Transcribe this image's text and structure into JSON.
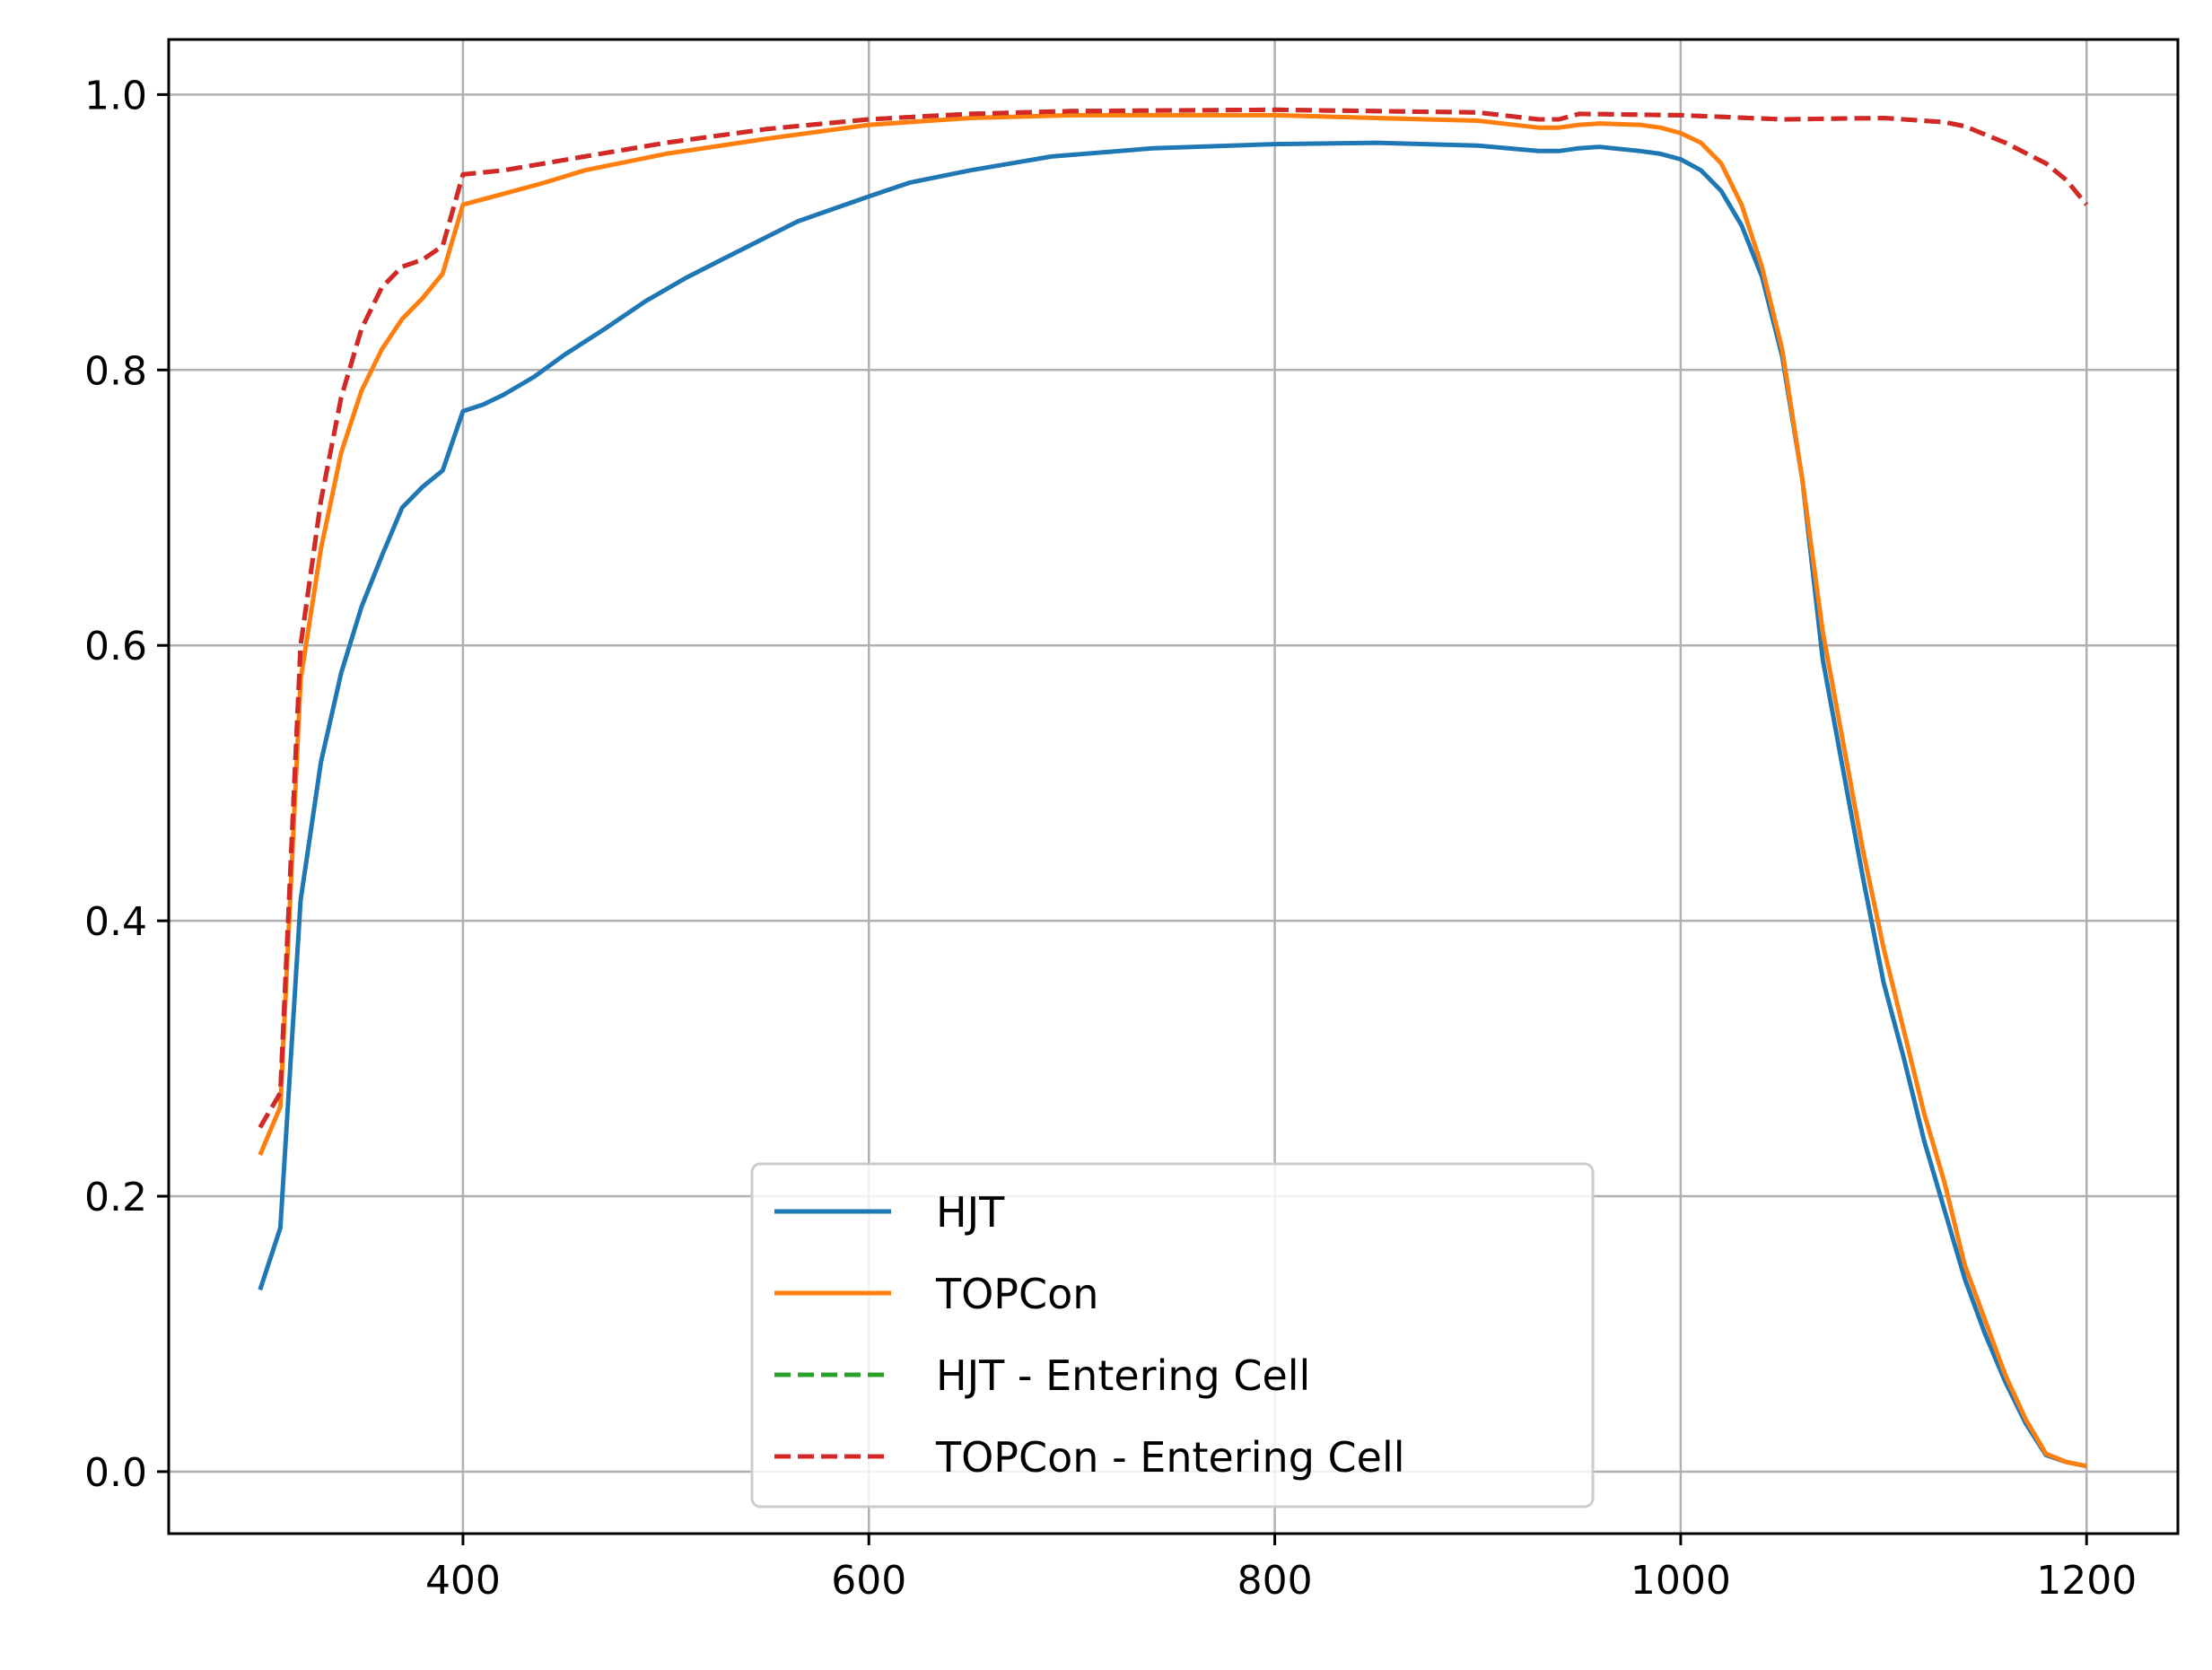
{
  "colors": {
    "hjt": "#1f77b4",
    "topcon": "#ff7f0e",
    "hjt_entering": "#2ca02c",
    "topcon_entering": "#d62728",
    "grid": "#b0b0b0",
    "axes": "#000000",
    "legend_border": "#cccccc"
  },
  "chart_data": {
    "type": "line",
    "title": "",
    "xlabel": "",
    "ylabel": "",
    "xlim": [
      255,
      1245
    ],
    "ylim": [
      -0.045,
      1.04
    ],
    "grid": true,
    "legend_position": "lower-center",
    "xticks": [
      400,
      600,
      800,
      1000,
      1200
    ],
    "xtick_labels": [
      "400",
      "600",
      "800",
      "1000",
      "1200"
    ],
    "yticks": [
      0.0,
      0.2,
      0.4,
      0.6,
      0.8,
      1.0
    ],
    "ytick_labels": [
      "0.0",
      "0.2",
      "0.4",
      "0.6",
      "0.8",
      "1.0"
    ],
    "series": [
      {
        "name": "HJT",
        "style": "solid",
        "color_key": "hjt",
        "points": [
          [
            300,
            0.132
          ],
          [
            310,
            0.177
          ],
          [
            320,
            0.415
          ],
          [
            330,
            0.515
          ],
          [
            340,
            0.58
          ],
          [
            350,
            0.628
          ],
          [
            360,
            0.665
          ],
          [
            370,
            0.7
          ],
          [
            380,
            0.715
          ],
          [
            390,
            0.727
          ],
          [
            400,
            0.77
          ],
          [
            410,
            0.775
          ],
          [
            420,
            0.782
          ],
          [
            435,
            0.795
          ],
          [
            450,
            0.811
          ],
          [
            470,
            0.83
          ],
          [
            490,
            0.85
          ],
          [
            510,
            0.867
          ],
          [
            530,
            0.882
          ],
          [
            565,
            0.908
          ],
          [
            600,
            0.926
          ],
          [
            620,
            0.936
          ],
          [
            650,
            0.945
          ],
          [
            690,
            0.955
          ],
          [
            740,
            0.961
          ],
          [
            800,
            0.964
          ],
          [
            850,
            0.965
          ],
          [
            900,
            0.963
          ],
          [
            930,
            0.959
          ],
          [
            940,
            0.959
          ],
          [
            950,
            0.961
          ],
          [
            960,
            0.962
          ],
          [
            980,
            0.959
          ],
          [
            990,
            0.957
          ],
          [
            1000,
            0.953
          ],
          [
            1010,
            0.945
          ],
          [
            1020,
            0.93
          ],
          [
            1030,
            0.905
          ],
          [
            1040,
            0.868
          ],
          [
            1050,
            0.81
          ],
          [
            1060,
            0.72
          ],
          [
            1070,
            0.59
          ],
          [
            1080,
            0.51
          ],
          [
            1090,
            0.43
          ],
          [
            1100,
            0.355
          ],
          [
            1110,
            0.3
          ],
          [
            1120,
            0.24
          ],
          [
            1130,
            0.19
          ],
          [
            1140,
            0.14
          ],
          [
            1150,
            0.1
          ],
          [
            1160,
            0.065
          ],
          [
            1170,
            0.035
          ],
          [
            1180,
            0.012
          ],
          [
            1190,
            0.007
          ],
          [
            1200,
            0.004
          ]
        ]
      },
      {
        "name": "TOPCon",
        "style": "solid",
        "color_key": "topcon",
        "points": [
          [
            300,
            0.23
          ],
          [
            310,
            0.265
          ],
          [
            320,
            0.575
          ],
          [
            330,
            0.67
          ],
          [
            340,
            0.74
          ],
          [
            350,
            0.785
          ],
          [
            360,
            0.815
          ],
          [
            370,
            0.837
          ],
          [
            380,
            0.852
          ],
          [
            390,
            0.87
          ],
          [
            400,
            0.92
          ],
          [
            420,
            0.928
          ],
          [
            440,
            0.936
          ],
          [
            460,
            0.945
          ],
          [
            500,
            0.957
          ],
          [
            550,
            0.968
          ],
          [
            600,
            0.978
          ],
          [
            650,
            0.983
          ],
          [
            700,
            0.985
          ],
          [
            800,
            0.985
          ],
          [
            900,
            0.981
          ],
          [
            930,
            0.976
          ],
          [
            940,
            0.976
          ],
          [
            950,
            0.978
          ],
          [
            960,
            0.979
          ],
          [
            980,
            0.978
          ],
          [
            990,
            0.976
          ],
          [
            1000,
            0.972
          ],
          [
            1010,
            0.965
          ],
          [
            1020,
            0.95
          ],
          [
            1030,
            0.92
          ],
          [
            1040,
            0.875
          ],
          [
            1050,
            0.815
          ],
          [
            1060,
            0.72
          ],
          [
            1070,
            0.61
          ],
          [
            1080,
            0.53
          ],
          [
            1090,
            0.45
          ],
          [
            1100,
            0.38
          ],
          [
            1110,
            0.32
          ],
          [
            1120,
            0.26
          ],
          [
            1130,
            0.21
          ],
          [
            1140,
            0.15
          ],
          [
            1150,
            0.11
          ],
          [
            1160,
            0.07
          ],
          [
            1170,
            0.038
          ],
          [
            1180,
            0.013
          ],
          [
            1190,
            0.007
          ],
          [
            1200,
            0.004
          ]
        ]
      },
      {
        "name": "HJT - Entering Cell",
        "style": "dashed",
        "color_key": "hjt_entering",
        "points": [
          [
            300,
            0.25
          ],
          [
            310,
            0.275
          ],
          [
            320,
            0.6
          ],
          [
            330,
            0.705
          ],
          [
            340,
            0.78
          ],
          [
            350,
            0.83
          ],
          [
            360,
            0.86
          ],
          [
            370,
            0.875
          ],
          [
            380,
            0.88
          ],
          [
            390,
            0.89
          ],
          [
            400,
            0.942
          ],
          [
            420,
            0.945
          ],
          [
            440,
            0.95
          ],
          [
            460,
            0.955
          ],
          [
            500,
            0.965
          ],
          [
            550,
            0.975
          ],
          [
            600,
            0.982
          ],
          [
            650,
            0.986
          ],
          [
            700,
            0.988
          ],
          [
            800,
            0.989
          ],
          [
            900,
            0.987
          ],
          [
            930,
            0.982
          ],
          [
            940,
            0.982
          ],
          [
            950,
            0.986
          ],
          [
            1000,
            0.985
          ],
          [
            1050,
            0.982
          ],
          [
            1100,
            0.983
          ],
          [
            1130,
            0.98
          ],
          [
            1140,
            0.977
          ],
          [
            1160,
            0.965
          ],
          [
            1180,
            0.95
          ],
          [
            1190,
            0.938
          ],
          [
            1200,
            0.92
          ]
        ]
      },
      {
        "name": "TOPCon - Entering Cell",
        "style": "dashed",
        "color_key": "topcon_entering",
        "points": [
          [
            300,
            0.25
          ],
          [
            310,
            0.275
          ],
          [
            320,
            0.6
          ],
          [
            330,
            0.705
          ],
          [
            340,
            0.78
          ],
          [
            350,
            0.83
          ],
          [
            360,
            0.86
          ],
          [
            370,
            0.875
          ],
          [
            380,
            0.88
          ],
          [
            390,
            0.89
          ],
          [
            400,
            0.942
          ],
          [
            420,
            0.945
          ],
          [
            440,
            0.95
          ],
          [
            460,
            0.955
          ],
          [
            500,
            0.965
          ],
          [
            550,
            0.975
          ],
          [
            600,
            0.982
          ],
          [
            650,
            0.986
          ],
          [
            700,
            0.988
          ],
          [
            800,
            0.989
          ],
          [
            900,
            0.987
          ],
          [
            930,
            0.982
          ],
          [
            940,
            0.982
          ],
          [
            950,
            0.986
          ],
          [
            1000,
            0.985
          ],
          [
            1050,
            0.982
          ],
          [
            1100,
            0.983
          ],
          [
            1130,
            0.98
          ],
          [
            1140,
            0.977
          ],
          [
            1160,
            0.965
          ],
          [
            1180,
            0.95
          ],
          [
            1190,
            0.938
          ],
          [
            1200,
            0.92
          ]
        ]
      }
    ]
  }
}
